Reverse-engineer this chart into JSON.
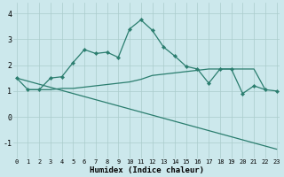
{
  "line1_x": [
    0,
    1,
    2,
    3,
    4,
    5,
    6,
    7,
    8,
    9,
    10,
    11,
    12,
    13,
    14,
    15,
    16,
    17,
    18,
    19,
    20,
    21,
    22,
    23
  ],
  "line1_y": [
    1.5,
    1.05,
    1.05,
    1.5,
    1.55,
    2.1,
    2.6,
    2.45,
    2.5,
    2.3,
    3.4,
    3.75,
    3.35,
    2.7,
    2.35,
    1.95,
    1.85,
    1.3,
    1.85,
    1.85,
    0.9,
    1.2,
    1.05,
    1.0
  ],
  "line2_x": [
    1,
    2,
    3,
    4,
    5,
    6,
    7,
    8,
    9,
    10,
    11,
    12,
    13,
    14,
    15,
    16,
    17,
    18,
    19,
    20,
    21,
    22
  ],
  "line2_y": [
    1.05,
    1.05,
    1.05,
    1.1,
    1.1,
    1.15,
    1.2,
    1.25,
    1.3,
    1.35,
    1.45,
    1.6,
    1.65,
    1.7,
    1.75,
    1.8,
    1.85,
    1.85,
    1.85,
    1.85,
    1.85,
    1.05
  ],
  "line3_x": [
    0,
    23
  ],
  "line3_y": [
    1.5,
    -1.25
  ],
  "line_color": "#2a7d6e",
  "bg_color": "#cce8ec",
  "grid_color": "#aacccc",
  "xlabel": "Humidex (Indice chaleur)",
  "xlim": [
    -0.3,
    23.3
  ],
  "ylim": [
    -1.6,
    4.4
  ],
  "yticks": [
    -1,
    0,
    1,
    2,
    3,
    4
  ],
  "xticks": [
    0,
    1,
    2,
    3,
    4,
    5,
    6,
    7,
    8,
    9,
    10,
    11,
    12,
    13,
    14,
    15,
    16,
    17,
    18,
    19,
    20,
    21,
    22,
    23
  ],
  "tick_fontsize": 5.0,
  "xlabel_fontsize": 6.5
}
